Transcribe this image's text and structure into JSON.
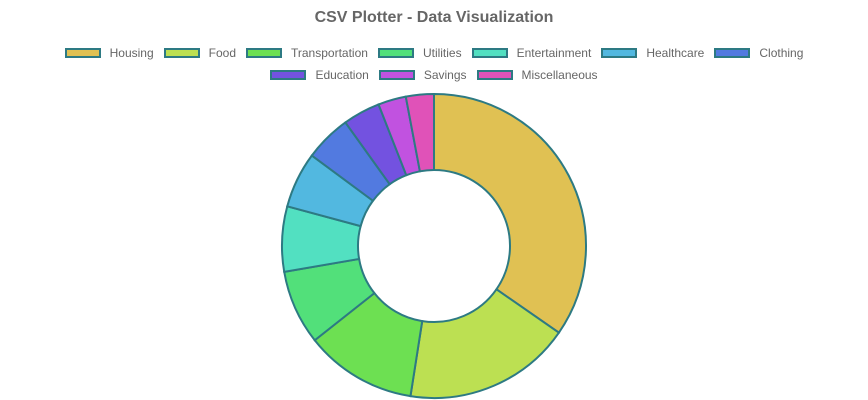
{
  "chart_data": {
    "type": "pie",
    "title": "CSV Plotter - Data Visualization",
    "categories": [
      "Housing",
      "Food",
      "Transportation",
      "Utilities",
      "Entertainment",
      "Healthcare",
      "Clothing",
      "Education",
      "Savings",
      "Miscellaneous"
    ],
    "values": [
      35,
      18,
      12,
      8,
      7,
      6,
      5,
      4,
      3,
      3
    ],
    "colors": [
      "#e0c153",
      "#bce052",
      "#6de052",
      "#52e07a",
      "#52e0c1",
      "#52b8e0",
      "#527ae0",
      "#7352e0",
      "#c152e0",
      "#e052b8"
    ],
    "border_color": "#2d7a83",
    "legend_position": "top",
    "chart_style": "doughnut"
  }
}
